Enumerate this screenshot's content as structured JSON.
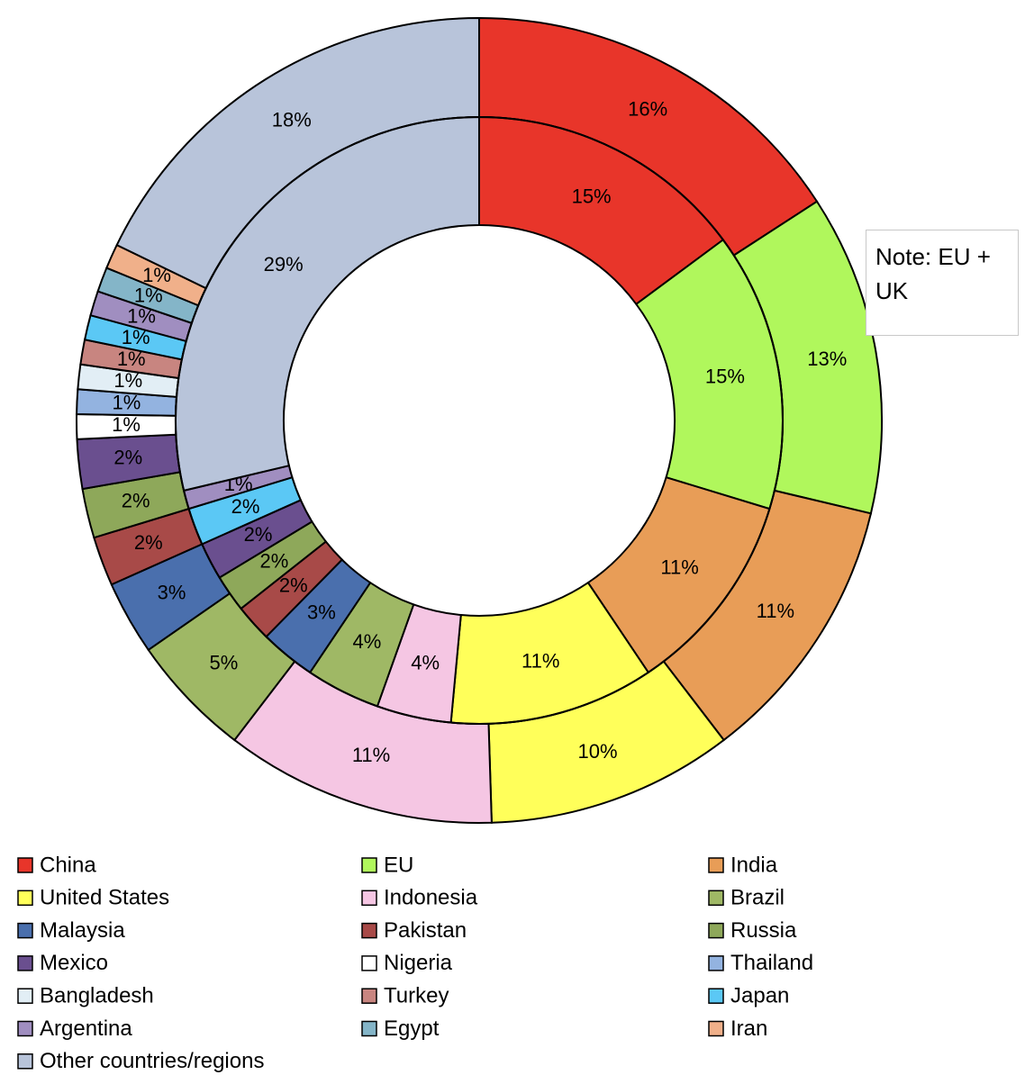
{
  "chart_data": {
    "type": "donut",
    "annotation": "Note: EU + UK",
    "categories": [
      "China",
      "EU",
      "India",
      "United States",
      "Indonesia",
      "Brazil",
      "Malaysia",
      "Pakistan",
      "Russia",
      "Mexico",
      "Nigeria",
      "Thailand",
      "Bangladesh",
      "Turkey",
      "Japan",
      "Argentina",
      "Egypt",
      "Iran",
      "Other countries/regions"
    ],
    "colors": [
      "#e8352a",
      "#b0f75c",
      "#e89d57",
      "#ffff5a",
      "#f5c6e3",
      "#9fb865",
      "#4a6fad",
      "#a84a48",
      "#8ea85a",
      "#6a4f8f",
      "#ffffff",
      "#93b3e0",
      "#e2eef5",
      "#c88580",
      "#5bc8f5",
      "#a08ec0",
      "#84b5c8",
      "#f0b08a",
      "#b8c4da"
    ],
    "series": [
      {
        "values": [
          16,
          13,
          11,
          10,
          11,
          5,
          3,
          2,
          2,
          2,
          1,
          1,
          1,
          1,
          1,
          1,
          1,
          1,
          18
        ],
        "value_labels": [
          "16%",
          "13%",
          "11%",
          "10%",
          "11%",
          "5%",
          "3%",
          "2%",
          "2%",
          "2%",
          "1%",
          "1%",
          "1%",
          "1%",
          "1%",
          "1%",
          "1%",
          "1%",
          "18%"
        ]
      },
      {
        "values": [
          15,
          15,
          11,
          11,
          4,
          4,
          3,
          2,
          2,
          2,
          null,
          null,
          null,
          null,
          2,
          1,
          null,
          null,
          29
        ],
        "value_labels": [
          "15%",
          "15%",
          "11%",
          "11%",
          "4%",
          "4%",
          "3%",
          "2%",
          "2%",
          "2%",
          null,
          null,
          null,
          null,
          "2%",
          "1%",
          null,
          null,
          "29%"
        ]
      }
    ]
  }
}
